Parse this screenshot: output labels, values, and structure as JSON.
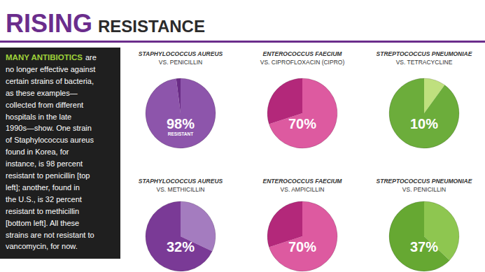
{
  "page": {
    "title_bold": "RISING",
    "title_rest": "RESISTANCE",
    "caption_lead": "MANY ANTIBIOTICS",
    "caption_lines": [
      "are",
      "no longer effective against",
      "certain strains of bacteria,",
      "as these examples—",
      "collected from different",
      "hospitals in the late",
      "1990s—show. One strain",
      "of Staphylococcus aureus",
      "found in Korea, for",
      "instance, is 98 percent",
      "resistant to penicillin [top",
      "left]; another, found in",
      "the U.S., is 32 percent",
      "resistant to methicillin",
      "[bottom left]. All these",
      "strains are not resistant to",
      "vancomycin, for now."
    ]
  },
  "chart_data": [
    {
      "type": "pie",
      "title": "STAPHYLOCOCCUS AUREUS",
      "subtitle": "VS. PENICILLIN",
      "categories": [
        "RESISTANT",
        null
      ],
      "values": [
        98,
        2
      ],
      "value_labels": [
        "98%",
        null
      ],
      "data_labels": true,
      "colors": [
        "#8d55ab",
        "#6a2c86"
      ]
    },
    {
      "type": "pie",
      "title": "ENTEROCOCCUS FAECIUM",
      "subtitle": "VS. CIPROFLOXACIN (CIPRO)",
      "categories": [
        null,
        null
      ],
      "values": [
        70,
        30
      ],
      "value_labels": [
        "70%",
        null
      ],
      "data_labels": true,
      "colors": [
        "#dd5aa0",
        "#b3287a"
      ]
    },
    {
      "type": "pie",
      "title": "STREPTOCOCCUS PNEUMONIAE",
      "subtitle": "VS. TETRACYCLINE",
      "categories": [
        null,
        null
      ],
      "values": [
        10,
        90
      ],
      "value_labels": [
        "10%",
        null
      ],
      "data_labels": true,
      "colors": [
        "#bfe07e",
        "#6cad3b"
      ]
    },
    {
      "type": "pie",
      "title": "STAPHYLOCOCCUS AUREUS",
      "subtitle": "VS. METHICILLIN",
      "categories": [
        null,
        null
      ],
      "values": [
        32,
        68
      ],
      "value_labels": [
        "32%",
        null
      ],
      "data_labels": true,
      "colors": [
        "#a47cbf",
        "#7a3a96"
      ]
    },
    {
      "type": "pie",
      "title": "ENTEROCOCCUS FAECIUM",
      "subtitle": "VS. AMPICILLIN",
      "categories": [
        null,
        null
      ],
      "values": [
        70,
        30
      ],
      "value_labels": [
        "70%",
        null
      ],
      "data_labels": true,
      "colors": [
        "#dd5aa0",
        "#b3287a"
      ]
    },
    {
      "type": "pie",
      "title": "STREPTOCOCCUS PNEUMONIAE",
      "subtitle": "VS. PENICILLIN",
      "categories": [
        null,
        null
      ],
      "values": [
        37,
        63
      ],
      "value_labels": [
        "37%",
        null
      ],
      "data_labels": true,
      "colors": [
        "#8ec650",
        "#66a832"
      ]
    }
  ]
}
